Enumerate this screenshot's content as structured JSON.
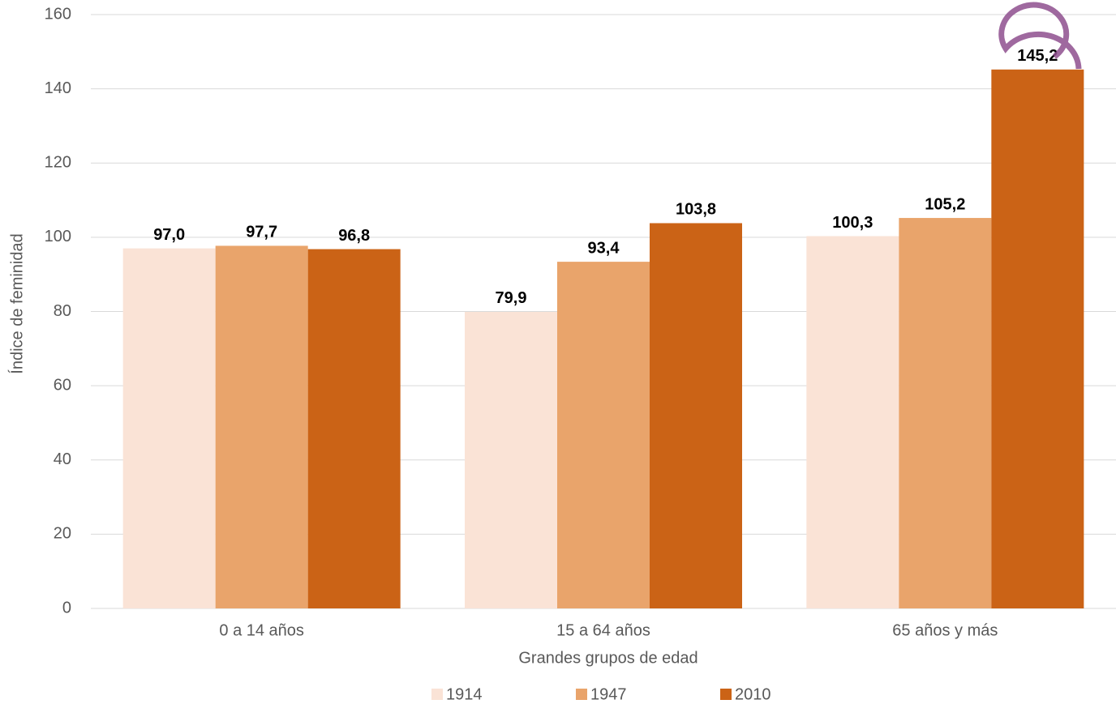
{
  "chart_data": {
    "type": "bar",
    "x_label": "Grandes grupos de edad",
    "y_label": "Índice de feminidad",
    "categories": [
      "0 a 14 años",
      "15 a 64 años",
      "65 años y más"
    ],
    "series": [
      {
        "name": "1914",
        "color": "#fae3d6",
        "values": [
          97.0,
          79.9,
          100.3
        ],
        "value_labels": [
          "97,0",
          "79,9",
          "100,3"
        ]
      },
      {
        "name": "1947",
        "color": "#e9a46b",
        "values": [
          97.7,
          93.4,
          105.2
        ],
        "value_labels": [
          "97,7",
          "93,4",
          "105,2"
        ]
      },
      {
        "name": "2010",
        "color": "#cb6316",
        "values": [
          96.8,
          103.8,
          145.2
        ],
        "value_labels": [
          "96,8",
          "103,8",
          "145,2"
        ]
      }
    ],
    "ylim": [
      0,
      160
    ],
    "yticks": [
      0,
      20,
      40,
      60,
      80,
      100,
      120,
      140,
      160
    ],
    "grid": true,
    "legend": "bottom"
  }
}
